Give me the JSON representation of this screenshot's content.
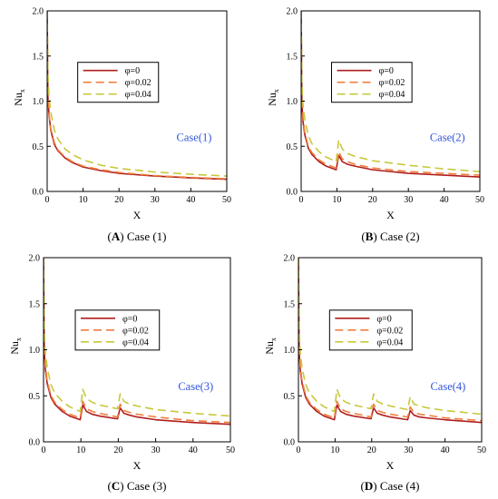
{
  "chart_data": [
    {
      "type": "line",
      "panel_letter": "A",
      "caption": "Case (1)",
      "annotation": "Case(1)",
      "xlabel": "X",
      "ylabel_main": "Nu",
      "ylabel_sub": "x",
      "xlim": [
        0,
        50
      ],
      "ylim": [
        0,
        2.0
      ],
      "xticks": [
        0,
        10,
        20,
        30,
        40,
        50
      ],
      "yticks": [
        0.0,
        0.5,
        1.0,
        1.5,
        2.0
      ],
      "ytick_labels": [
        "0.0",
        "0.5",
        "1.0",
        "1.5",
        "2.0"
      ],
      "grid": false,
      "legend_position": "upper-middle",
      "bumps_at": [],
      "series": [
        {
          "name": "φ=0",
          "color": "#b01e1e",
          "dash": "solid",
          "values": [
            [
              0,
              2.0
            ],
            [
              0.2,
              1.05
            ],
            [
              0.5,
              0.85
            ],
            [
              1,
              0.68
            ],
            [
              2,
              0.52
            ],
            [
              3,
              0.45
            ],
            [
              5,
              0.37
            ],
            [
              7,
              0.32
            ],
            [
              10,
              0.27
            ],
            [
              15,
              0.23
            ],
            [
              20,
              0.2
            ],
            [
              30,
              0.17
            ],
            [
              40,
              0.15
            ],
            [
              50,
              0.135
            ]
          ]
        },
        {
          "name": "φ=0.02",
          "color": "#f07f3c",
          "dash": "dashed",
          "values": [
            [
              0,
              2.0
            ],
            [
              0.2,
              1.08
            ],
            [
              0.5,
              0.87
            ],
            [
              1,
              0.7
            ],
            [
              2,
              0.54
            ],
            [
              3,
              0.46
            ],
            [
              5,
              0.38
            ],
            [
              7,
              0.33
            ],
            [
              10,
              0.28
            ],
            [
              15,
              0.24
            ],
            [
              20,
              0.21
            ],
            [
              30,
              0.175
            ],
            [
              40,
              0.155
            ],
            [
              50,
              0.14
            ]
          ]
        },
        {
          "name": "φ=0.04",
          "color": "#c8c83c",
          "dash": "dashed",
          "values": [
            [
              0,
              2.0
            ],
            [
              0.2,
              1.3
            ],
            [
              0.5,
              1.05
            ],
            [
              1,
              0.88
            ],
            [
              2,
              0.68
            ],
            [
              3,
              0.58
            ],
            [
              5,
              0.47
            ],
            [
              7,
              0.41
            ],
            [
              10,
              0.35
            ],
            [
              15,
              0.29
            ],
            [
              20,
              0.255
            ],
            [
              30,
              0.215
            ],
            [
              40,
              0.19
            ],
            [
              50,
              0.17
            ]
          ]
        }
      ]
    },
    {
      "type": "line",
      "panel_letter": "B",
      "caption": "Case (2)",
      "annotation": "Case(2)",
      "xlabel": "X",
      "ylabel_main": "Nu",
      "ylabel_sub": "x",
      "xlim": [
        0,
        50
      ],
      "ylim": [
        0,
        2.0
      ],
      "xticks": [
        0,
        10,
        20,
        30,
        40,
        50
      ],
      "yticks": [
        0.0,
        0.5,
        1.0,
        1.5,
        2.0
      ],
      "ytick_labels": [
        "0.0",
        "0.5",
        "1.0",
        "1.5",
        "2.0"
      ],
      "grid": false,
      "legend_position": "upper-middle",
      "bumps_at": [
        10
      ],
      "series": [
        {
          "name": "φ=0",
          "color": "#b01e1e",
          "dash": "solid",
          "values": [
            [
              0,
              2.0
            ],
            [
              0.2,
              0.98
            ],
            [
              0.5,
              0.78
            ],
            [
              1,
              0.63
            ],
            [
              2,
              0.48
            ],
            [
              3,
              0.41
            ],
            [
              5,
              0.33
            ],
            [
              7,
              0.28
            ],
            [
              9.8,
              0.24
            ],
            [
              10.5,
              0.4
            ],
            [
              11.5,
              0.33
            ],
            [
              13,
              0.3
            ],
            [
              15,
              0.28
            ],
            [
              20,
              0.24
            ],
            [
              30,
              0.2
            ],
            [
              40,
              0.18
            ],
            [
              50,
              0.16
            ]
          ]
        },
        {
          "name": "φ=0.02",
          "color": "#f07f3c",
          "dash": "dashed",
          "values": [
            [
              0,
              2.0
            ],
            [
              0.2,
              1.02
            ],
            [
              0.5,
              0.82
            ],
            [
              1,
              0.66
            ],
            [
              2,
              0.5
            ],
            [
              3,
              0.43
            ],
            [
              5,
              0.35
            ],
            [
              7,
              0.3
            ],
            [
              9.8,
              0.26
            ],
            [
              10.5,
              0.44
            ],
            [
              11.5,
              0.36
            ],
            [
              13,
              0.33
            ],
            [
              15,
              0.3
            ],
            [
              20,
              0.26
            ],
            [
              30,
              0.22
            ],
            [
              40,
              0.2
            ],
            [
              50,
              0.18
            ]
          ]
        },
        {
          "name": "φ=0.04",
          "color": "#c8c83c",
          "dash": "dashed",
          "values": [
            [
              0,
              2.0
            ],
            [
              0.2,
              1.2
            ],
            [
              0.5,
              0.97
            ],
            [
              1,
              0.8
            ],
            [
              2,
              0.62
            ],
            [
              3,
              0.53
            ],
            [
              5,
              0.44
            ],
            [
              7,
              0.38
            ],
            [
              9.8,
              0.33
            ],
            [
              10.5,
              0.57
            ],
            [
              11.5,
              0.47
            ],
            [
              13,
              0.42
            ],
            [
              15,
              0.39
            ],
            [
              20,
              0.34
            ],
            [
              30,
              0.29
            ],
            [
              40,
              0.25
            ],
            [
              50,
              0.22
            ]
          ]
        }
      ]
    },
    {
      "type": "line",
      "panel_letter": "C",
      "caption": "Case (3)",
      "annotation": "Case(3)",
      "xlabel": "X",
      "ylabel_main": "Nu",
      "ylabel_sub": "x",
      "xlim": [
        0,
        50
      ],
      "ylim": [
        0,
        2.0
      ],
      "xticks": [
        0,
        10,
        20,
        30,
        40,
        50
      ],
      "yticks": [
        0.0,
        0.5,
        1.0,
        1.5,
        2.0
      ],
      "ytick_labels": [
        "0.0",
        "0.5",
        "1.0",
        "1.5",
        "2.0"
      ],
      "grid": false,
      "legend_position": "upper-middle",
      "bumps_at": [
        10,
        20
      ],
      "series": [
        {
          "name": "φ=0",
          "color": "#b01e1e",
          "dash": "solid",
          "values": [
            [
              0,
              2.0
            ],
            [
              0.2,
              0.98
            ],
            [
              0.5,
              0.78
            ],
            [
              1,
              0.63
            ],
            [
              2,
              0.48
            ],
            [
              3,
              0.41
            ],
            [
              5,
              0.33
            ],
            [
              7,
              0.28
            ],
            [
              9.8,
              0.24
            ],
            [
              10.5,
              0.4
            ],
            [
              11.5,
              0.33
            ],
            [
              13,
              0.3
            ],
            [
              15,
              0.28
            ],
            [
              19.8,
              0.25
            ],
            [
              20.5,
              0.37
            ],
            [
              21.5,
              0.31
            ],
            [
              23,
              0.29
            ],
            [
              25,
              0.27
            ],
            [
              30,
              0.24
            ],
            [
              40,
              0.21
            ],
            [
              50,
              0.19
            ]
          ]
        },
        {
          "name": "φ=0.02",
          "color": "#f07f3c",
          "dash": "dashed",
          "values": [
            [
              0,
              2.0
            ],
            [
              0.2,
              1.02
            ],
            [
              0.5,
              0.82
            ],
            [
              1,
              0.66
            ],
            [
              2,
              0.5
            ],
            [
              3,
              0.43
            ],
            [
              5,
              0.35
            ],
            [
              7,
              0.3
            ],
            [
              9.8,
              0.26
            ],
            [
              10.5,
              0.44
            ],
            [
              11.5,
              0.36
            ],
            [
              13,
              0.33
            ],
            [
              15,
              0.31
            ],
            [
              19.8,
              0.27
            ],
            [
              20.5,
              0.41
            ],
            [
              21.5,
              0.34
            ],
            [
              23,
              0.32
            ],
            [
              25,
              0.3
            ],
            [
              30,
              0.27
            ],
            [
              40,
              0.23
            ],
            [
              50,
              0.21
            ]
          ]
        },
        {
          "name": "φ=0.04",
          "color": "#c8c83c",
          "dash": "dashed",
          "values": [
            [
              0,
              2.0
            ],
            [
              0.2,
              1.2
            ],
            [
              0.5,
              0.97
            ],
            [
              1,
              0.8
            ],
            [
              2,
              0.62
            ],
            [
              3,
              0.53
            ],
            [
              5,
              0.44
            ],
            [
              7,
              0.38
            ],
            [
              9.8,
              0.33
            ],
            [
              10.5,
              0.57
            ],
            [
              11.5,
              0.47
            ],
            [
              13,
              0.43
            ],
            [
              15,
              0.4
            ],
            [
              19.8,
              0.36
            ],
            [
              20.5,
              0.52
            ],
            [
              21.5,
              0.44
            ],
            [
              23,
              0.41
            ],
            [
              25,
              0.39
            ],
            [
              30,
              0.35
            ],
            [
              40,
              0.31
            ],
            [
              50,
              0.28
            ]
          ]
        }
      ]
    },
    {
      "type": "line",
      "panel_letter": "D",
      "caption": "Case (4)",
      "annotation": "Case(4)",
      "xlabel": "X",
      "ylabel_main": "Nu",
      "ylabel_sub": "x",
      "xlim": [
        0,
        50
      ],
      "ylim": [
        0,
        2.0
      ],
      "xticks": [
        0,
        10,
        20,
        30,
        40,
        50
      ],
      "yticks": [
        0.0,
        0.5,
        1.0,
        1.5,
        2.0
      ],
      "ytick_labels": [
        "0.0",
        "0.5",
        "1.0",
        "1.5",
        "2.0"
      ],
      "grid": false,
      "legend_position": "upper-middle",
      "bumps_at": [
        10,
        20,
        30
      ],
      "series": [
        {
          "name": "φ=0",
          "color": "#b01e1e",
          "dash": "solid",
          "values": [
            [
              0,
              2.0
            ],
            [
              0.2,
              0.98
            ],
            [
              0.5,
              0.78
            ],
            [
              1,
              0.63
            ],
            [
              2,
              0.48
            ],
            [
              3,
              0.41
            ],
            [
              5,
              0.33
            ],
            [
              7,
              0.28
            ],
            [
              9.8,
              0.24
            ],
            [
              10.5,
              0.4
            ],
            [
              11.5,
              0.33
            ],
            [
              13,
              0.3
            ],
            [
              15,
              0.28
            ],
            [
              19.8,
              0.25
            ],
            [
              20.5,
              0.37
            ],
            [
              21.5,
              0.31
            ],
            [
              23,
              0.29
            ],
            [
              25,
              0.27
            ],
            [
              29.8,
              0.24
            ],
            [
              30.5,
              0.34
            ],
            [
              31.5,
              0.29
            ],
            [
              33,
              0.27
            ],
            [
              35,
              0.26
            ],
            [
              40,
              0.24
            ],
            [
              50,
              0.21
            ]
          ]
        },
        {
          "name": "φ=0.02",
          "color": "#f07f3c",
          "dash": "dashed",
          "values": [
            [
              0,
              2.0
            ],
            [
              0.2,
              1.02
            ],
            [
              0.5,
              0.82
            ],
            [
              1,
              0.66
            ],
            [
              2,
              0.5
            ],
            [
              3,
              0.43
            ],
            [
              5,
              0.35
            ],
            [
              7,
              0.3
            ],
            [
              9.8,
              0.26
            ],
            [
              10.5,
              0.44
            ],
            [
              11.5,
              0.36
            ],
            [
              13,
              0.33
            ],
            [
              15,
              0.31
            ],
            [
              19.8,
              0.27
            ],
            [
              20.5,
              0.41
            ],
            [
              21.5,
              0.34
            ],
            [
              23,
              0.32
            ],
            [
              25,
              0.3
            ],
            [
              29.8,
              0.27
            ],
            [
              30.5,
              0.38
            ],
            [
              31.5,
              0.32
            ],
            [
              33,
              0.3
            ],
            [
              35,
              0.29
            ],
            [
              40,
              0.26
            ],
            [
              50,
              0.23
            ]
          ]
        },
        {
          "name": "φ=0.04",
          "color": "#c8c83c",
          "dash": "dashed",
          "values": [
            [
              0,
              2.0
            ],
            [
              0.2,
              1.2
            ],
            [
              0.5,
              0.97
            ],
            [
              1,
              0.8
            ],
            [
              2,
              0.62
            ],
            [
              3,
              0.53
            ],
            [
              5,
              0.44
            ],
            [
              7,
              0.38
            ],
            [
              9.8,
              0.33
            ],
            [
              10.5,
              0.57
            ],
            [
              11.5,
              0.47
            ],
            [
              13,
              0.43
            ],
            [
              15,
              0.4
            ],
            [
              19.8,
              0.36
            ],
            [
              20.5,
              0.52
            ],
            [
              21.5,
              0.44
            ],
            [
              23,
              0.41
            ],
            [
              25,
              0.39
            ],
            [
              29.8,
              0.35
            ],
            [
              30.5,
              0.49
            ],
            [
              31.5,
              0.41
            ],
            [
              33,
              0.39
            ],
            [
              35,
              0.37
            ],
            [
              40,
              0.34
            ],
            [
              50,
              0.3
            ]
          ]
        }
      ]
    }
  ],
  "colors": {
    "annotation": "#3355dd",
    "axis": "#000000"
  }
}
